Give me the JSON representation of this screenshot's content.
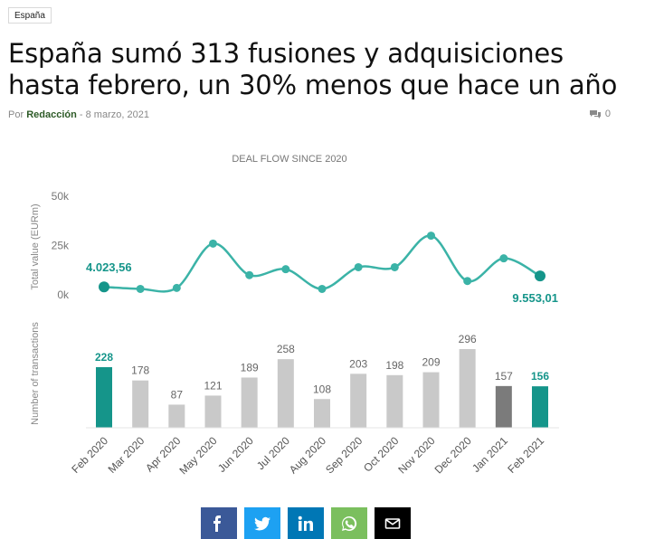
{
  "category": "España",
  "article": {
    "title": "España sumó 313 fusiones y adquisiciones hasta febrero, un 30% menos que hace un año",
    "by_prefix": "Por",
    "author": "Redacción",
    "separator": "-",
    "date": "8 marzo, 2021",
    "comment_count": "0"
  },
  "share": [
    {
      "name": "facebook",
      "color": "#3b5998"
    },
    {
      "name": "twitter",
      "color": "#1da1f2"
    },
    {
      "name": "linkedin",
      "color": "#0077b5"
    },
    {
      "name": "whatsapp",
      "color": "#7bbf5e"
    },
    {
      "name": "email",
      "color": "#000000"
    }
  ],
  "chart_data": {
    "type": "line+bar",
    "title": "DEAL FLOW SINCE 2020",
    "categories": [
      "Feb 2020",
      "Mar 2020",
      "Apr 2020",
      "May 2020",
      "Jun 2020",
      "Jul 2020",
      "Aug 2020",
      "Sep 2020",
      "Oct 2020",
      "Nov 2020",
      "Dec 2020",
      "Jan 2021",
      "Feb 2021"
    ],
    "line": {
      "ylabel": "Total value (EURm)",
      "yticks": [
        "50k",
        "25k",
        "0k"
      ],
      "ylim": [
        0,
        50000
      ],
      "values": [
        4023.56,
        3000,
        3500,
        26000,
        10000,
        13000,
        3000,
        14000,
        14000,
        30000,
        7000,
        18500,
        9553.01
      ],
      "start_label": "4.023,56",
      "end_label": "9.553,01",
      "color": "#3bb3a7"
    },
    "bars": {
      "ylabel": "Number of transactions",
      "values": [
        228,
        178,
        87,
        121,
        189,
        258,
        108,
        203,
        198,
        209,
        296,
        157,
        156
      ],
      "labels": [
        "228",
        "178",
        "87",
        "121",
        "189",
        "258",
        "108",
        "203",
        "198",
        "209",
        "296",
        "157",
        "156"
      ],
      "colors": [
        "#15958a",
        "#c9c9c9",
        "#c9c9c9",
        "#c9c9c9",
        "#c9c9c9",
        "#c9c9c9",
        "#c9c9c9",
        "#c9c9c9",
        "#c9c9c9",
        "#c9c9c9",
        "#c9c9c9",
        "#7b7b7b",
        "#15958a"
      ],
      "label_colors": [
        "#15958a",
        "#666666",
        "#666666",
        "#666666",
        "#666666",
        "#666666",
        "#666666",
        "#666666",
        "#666666",
        "#666666",
        "#666666",
        "#666666",
        "#15958a"
      ],
      "highlight_bold": [
        true,
        false,
        false,
        false,
        false,
        false,
        false,
        false,
        false,
        false,
        false,
        false,
        true
      ]
    }
  }
}
